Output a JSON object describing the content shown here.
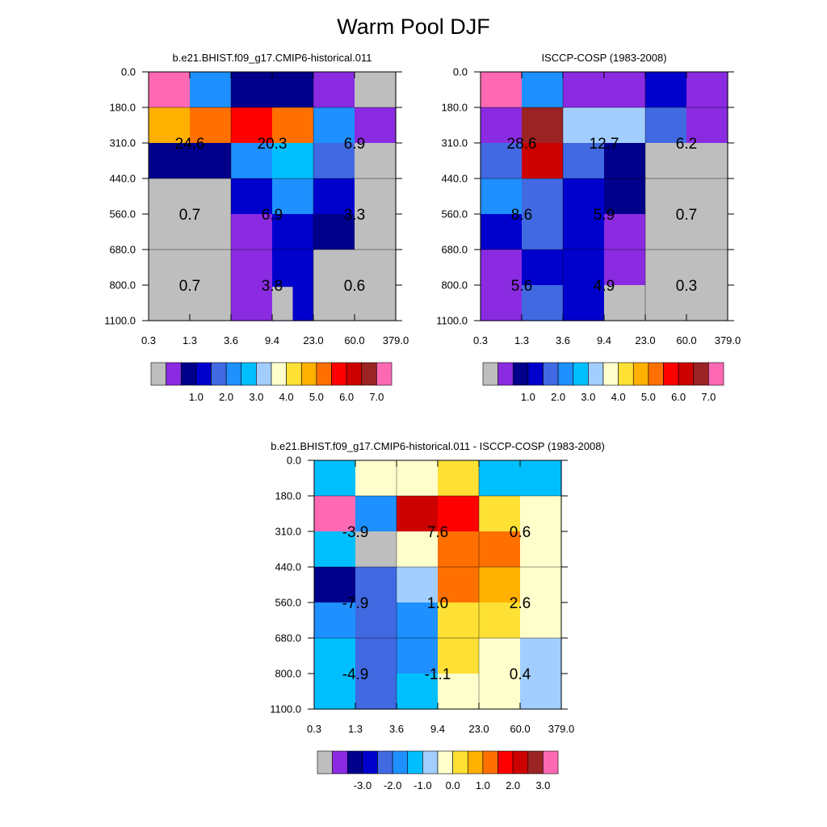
{
  "figure": {
    "title": "Warm Pool DJF"
  },
  "chart_data": [
    {
      "type": "heatmap",
      "title": "b.e21.BHIST.f09_g17.CMIP6-historical.011",
      "x_ticks": [
        "0.3",
        "1.3",
        "3.6",
        "9.4",
        "23.0",
        "60.0",
        "379.0"
      ],
      "y_ticks": [
        "0.0",
        "180.0",
        "310.0",
        "440.0",
        "560.0",
        "680.0",
        "800.0",
        "1100.0"
      ],
      "palette": [
        "#bebebe",
        "#8a2be2",
        "#00008b",
        "#0000cd",
        "#4169e1",
        "#1e90ff",
        "#00bfff",
        "#a2cdff",
        "#ffffcc",
        "#ffe135",
        "#ffb000",
        "#ff7000",
        "#ff0000",
        "#cd0000",
        "#9b2323",
        "#ff69b4"
      ],
      "colorbar_labels": [
        "1.0",
        "2.0",
        "3.0",
        "4.0",
        "5.0",
        "6.0",
        "7.0"
      ],
      "cells": [
        [
          15,
          5,
          2,
          2,
          1,
          0
        ],
        [
          10,
          11,
          12,
          11,
          5,
          1
        ],
        [
          2,
          2,
          5,
          6,
          4,
          0
        ],
        [
          0,
          0,
          3,
          5,
          3,
          0
        ],
        [
          0,
          0,
          1,
          3,
          2,
          0
        ],
        [
          0,
          0,
          1,
          3,
          0,
          0
        ],
        [
          0,
          0,
          1,
          3,
          0,
          0
        ]
      ],
      "cells_extra": [
        {
          "row": 4,
          "col": 4,
          "idx": 2
        },
        {
          "row": 6,
          "col": 3,
          "idx": 0
        }
      ],
      "block_labels": [
        {
          "row": 1,
          "col": 0,
          "text": "24.6"
        },
        {
          "row": 1,
          "col": 1,
          "text": "20.3"
        },
        {
          "row": 1,
          "col": 2,
          "text": "6.9"
        },
        {
          "row": 2,
          "col": 0,
          "text": "0.7"
        },
        {
          "row": 2,
          "col": 1,
          "text": "6.9"
        },
        {
          "row": 2,
          "col": 2,
          "text": "3.3"
        },
        {
          "row": 3,
          "col": 0,
          "text": "0.7"
        },
        {
          "row": 3,
          "col": 1,
          "text": "3.8"
        },
        {
          "row": 3,
          "col": 2,
          "text": "0.6"
        }
      ]
    },
    {
      "type": "heatmap",
      "title": "ISCCP-COSP (1983-2008)",
      "x_ticks": [
        "0.3",
        "1.3",
        "3.6",
        "9.4",
        "23.0",
        "60.0",
        "379.0"
      ],
      "y_ticks": [
        "0.0",
        "180.0",
        "310.0",
        "440.0",
        "560.0",
        "680.0",
        "800.0",
        "1100.0"
      ],
      "palette": [
        "#bebebe",
        "#8a2be2",
        "#00008b",
        "#0000cd",
        "#4169e1",
        "#1e90ff",
        "#00bfff",
        "#a2cdff",
        "#ffffcc",
        "#ffe135",
        "#ffb000",
        "#ff7000",
        "#ff0000",
        "#cd0000",
        "#9b2323",
        "#ff69b4"
      ],
      "colorbar_labels": [
        "1.0",
        "2.0",
        "3.0",
        "4.0",
        "5.0",
        "6.0",
        "7.0"
      ],
      "cells": [
        [
          15,
          5,
          1,
          1,
          3,
          1
        ],
        [
          1,
          14,
          7,
          7,
          4,
          1
        ],
        [
          4,
          13,
          4,
          2,
          0,
          0
        ],
        [
          5,
          4,
          3,
          2,
          0,
          0
        ],
        [
          3,
          4,
          3,
          1,
          0,
          0
        ],
        [
          1,
          3,
          3,
          1,
          0,
          0
        ],
        [
          1,
          4,
          3,
          0,
          0,
          0
        ]
      ],
      "cells_extra": [],
      "block_labels": [
        {
          "row": 1,
          "col": 0,
          "text": "28.6"
        },
        {
          "row": 1,
          "col": 1,
          "text": "12.7"
        },
        {
          "row": 1,
          "col": 2,
          "text": "6.2"
        },
        {
          "row": 2,
          "col": 0,
          "text": "8.6"
        },
        {
          "row": 2,
          "col": 1,
          "text": "5.9"
        },
        {
          "row": 2,
          "col": 2,
          "text": "0.7"
        },
        {
          "row": 3,
          "col": 0,
          "text": "5.6"
        },
        {
          "row": 3,
          "col": 1,
          "text": "4.9"
        },
        {
          "row": 3,
          "col": 2,
          "text": "0.3"
        }
      ]
    },
    {
      "type": "heatmap",
      "title": "b.e21.BHIST.f09_g17.CMIP6-historical.011 - ISCCP-COSP (1983-2008)",
      "x_ticks": [
        "0.3",
        "1.3",
        "3.6",
        "9.4",
        "23.0",
        "60.0",
        "379.0"
      ],
      "y_ticks": [
        "0.0",
        "180.0",
        "310.0",
        "440.0",
        "560.0",
        "680.0",
        "800.0",
        "1100.0"
      ],
      "palette": [
        "#bebebe",
        "#8a2be2",
        "#00008b",
        "#0000cd",
        "#4169e1",
        "#1e90ff",
        "#00bfff",
        "#a2cdff",
        "#ffffcc",
        "#ffe135",
        "#ffb000",
        "#ff7000",
        "#ff0000",
        "#cd0000",
        "#9b2323",
        "#ff69b4"
      ],
      "colorbar_labels": [
        "-3.0",
        "-2.0",
        "-1.0",
        "0.0",
        "1.0",
        "2.0",
        "3.0"
      ],
      "cells": [
        [
          6,
          8,
          8,
          9,
          6,
          6
        ],
        [
          15,
          5,
          13,
          12,
          9,
          8
        ],
        [
          6,
          0,
          8,
          11,
          11,
          8
        ],
        [
          2,
          4,
          7,
          11,
          10,
          8
        ],
        [
          5,
          4,
          5,
          9,
          9,
          8
        ],
        [
          6,
          4,
          5,
          9,
          8,
          7
        ],
        [
          6,
          4,
          6,
          8,
          8,
          7
        ]
      ],
      "cells_extra": [],
      "block_labels": [
        {
          "row": 1,
          "col": 0,
          "text": "-3.9"
        },
        {
          "row": 1,
          "col": 1,
          "text": "7.6"
        },
        {
          "row": 1,
          "col": 2,
          "text": "0.6"
        },
        {
          "row": 2,
          "col": 0,
          "text": "-7.9"
        },
        {
          "row": 2,
          "col": 1,
          "text": "1.0"
        },
        {
          "row": 2,
          "col": 2,
          "text": "2.6"
        },
        {
          "row": 3,
          "col": 0,
          "text": "-4.9"
        },
        {
          "row": 3,
          "col": 1,
          "text": "-1.1"
        },
        {
          "row": 3,
          "col": 2,
          "text": "0.4"
        }
      ]
    }
  ]
}
